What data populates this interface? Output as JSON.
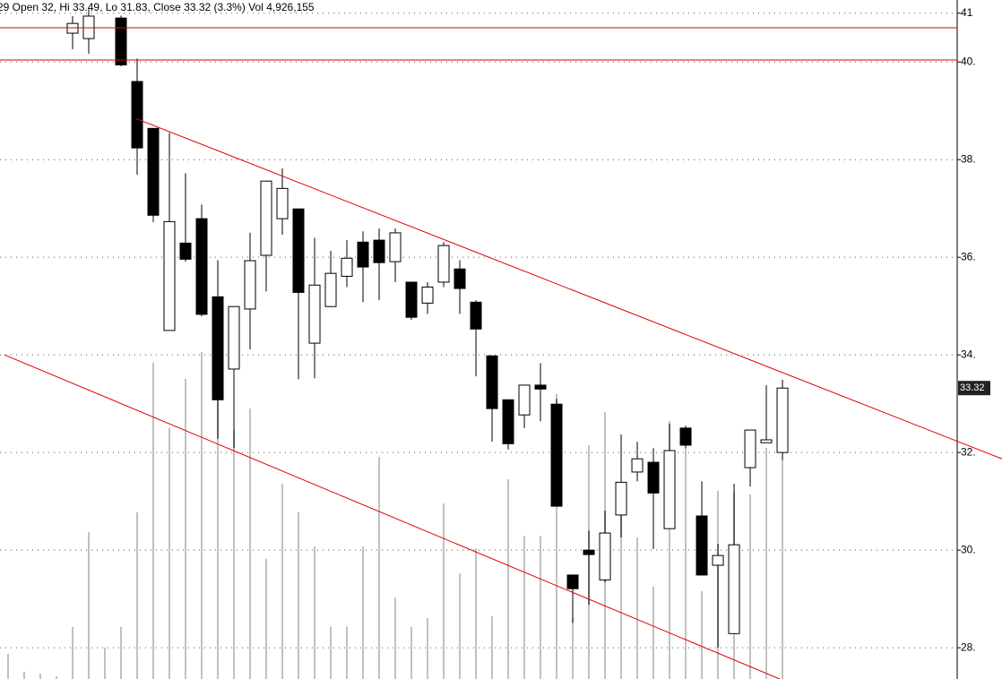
{
  "chart_data": {
    "type": "candlestick",
    "header": "29 Open 32, Hi 33.49, Lo 31.83, Close 33.32 (3.3%) Vol 4,926,155",
    "open": [
      null,
      null,
      null,
      null,
      40.59,
      40.48,
      null,
      40.9,
      39.6,
      38.64,
      34.5,
      36.29,
      36.79,
      35.19,
      33.71,
      34.94,
      36.04,
      36.79,
      36.99,
      34.24,
      34.99,
      35.61,
      36.31,
      36.35,
      35.91,
      35.49,
      35.06,
      35.49,
      35.76,
      35.08,
      33.98,
      33.08,
      32.77,
      33.38,
      32.99,
      29.49,
      30.0,
      29.39,
      30.72,
      31.6,
      31.8,
      30.44,
      32.5,
      30.7,
      29.69,
      28.29,
      31.69,
      32.2,
      32
    ],
    "high": [
      null,
      null,
      null,
      null,
      40.94,
      41.08,
      null,
      40.95,
      40.07,
      38.64,
      38.55,
      37.72,
      37.08,
      35.94,
      34.99,
      36.5,
      37.56,
      37.82,
      36.99,
      36.4,
      36.13,
      36.35,
      36.53,
      36.59,
      36.59,
      35.49,
      35.49,
      36.31,
      35.94,
      35.12,
      33.98,
      33.08,
      33.38,
      33.83,
      33.1,
      29.49,
      30.4,
      30.81,
      32.37,
      32.22,
      32.09,
      32.59,
      32.55,
      31.41,
      30.13,
      31.36,
      32.46,
      33.38,
      33.49
    ],
    "low": [
      null,
      null,
      null,
      null,
      40.26,
      40.17,
      null,
      39.91,
      37.69,
      36.72,
      34.5,
      35.91,
      34.79,
      32.28,
      32.09,
      34.11,
      35.3,
      36.46,
      33.5,
      33.52,
      34.99,
      35.39,
      35.08,
      35.12,
      35.49,
      34.72,
      34.84,
      35.39,
      34.84,
      33.56,
      32.22,
      32.06,
      32.5,
      32.64,
      30.9,
      28.51,
      28.88,
      29.34,
      30.26,
      31.41,
      30.02,
      30.44,
      32.09,
      29.49,
      28.0,
      28.29,
      31.3,
      32.2,
      31.83
    ],
    "close": [
      null,
      null,
      null,
      null,
      40.79,
      40.94,
      null,
      39.94,
      38.24,
      36.86,
      36.73,
      35.96,
      34.83,
      33.08,
      34.99,
      35.93,
      37.56,
      37.41,
      35.28,
      35.43,
      35.67,
      35.98,
      35.8,
      35.89,
      36.5,
      34.77,
      35.39,
      36.24,
      35.36,
      34.53,
      32.9,
      32.18,
      33.38,
      33.3,
      30.9,
      29.21,
      29.91,
      30.35,
      31.39,
      31.87,
      31.17,
      32.04,
      32.15,
      29.49,
      29.89,
      30.11,
      32.46,
      32.26,
      33.32
    ],
    "volume": [
      570000,
      160000,
      120000,
      60000,
      1180000,
      3320000,
      710000,
      1180000,
      3770000,
      7160000,
      5680000,
      6790000,
      7400000,
      6320000,
      5640000,
      6120000,
      2720000,
      4420000,
      3770000,
      3000000,
      1180000,
      1180000,
      3000000,
      5030000,
      1840000,
      1180000,
      1380000,
      3970000,
      2390000,
      2960000,
      1420000,
      4520000,
      3240000,
      3240000,
      6450000,
      1380000,
      5290000,
      6040000,
      4010000,
      3200000,
      2090000,
      5840000,
      5230000,
      1990000,
      4260000,
      4220000,
      4180000,
      5230000,
      4926155
    ],
    "volume_lim": [
      0,
      15366000
    ],
    "xlim": [
      -0.5,
      58.83
    ],
    "ylim": [
      27.36,
      41.27
    ],
    "yticks": [
      {
        "value": 41,
        "label": "41"
      },
      {
        "value": 40,
        "label": "40."
      },
      {
        "value": 38,
        "label": "38."
      },
      {
        "value": 36,
        "label": "36."
      },
      {
        "value": 34,
        "label": "34."
      },
      {
        "value": 32,
        "label": "32."
      },
      {
        "value": 30,
        "label": "30."
      },
      {
        "value": 28,
        "label": "28."
      }
    ],
    "hlines": [
      40.7,
      40.04
    ],
    "trendlines": [
      {
        "x": [
          7.94,
          61.61
        ],
        "y": [
          38.84,
          31.87
        ]
      },
      {
        "x": [
          -0.22,
          47.83
        ],
        "y": [
          34.0,
          27.36
        ]
      }
    ],
    "grid": true,
    "up_color": "#ffffff",
    "down_color": "#000000",
    "volume_color": "#c0c0c0",
    "line_color": "#e00000"
  }
}
